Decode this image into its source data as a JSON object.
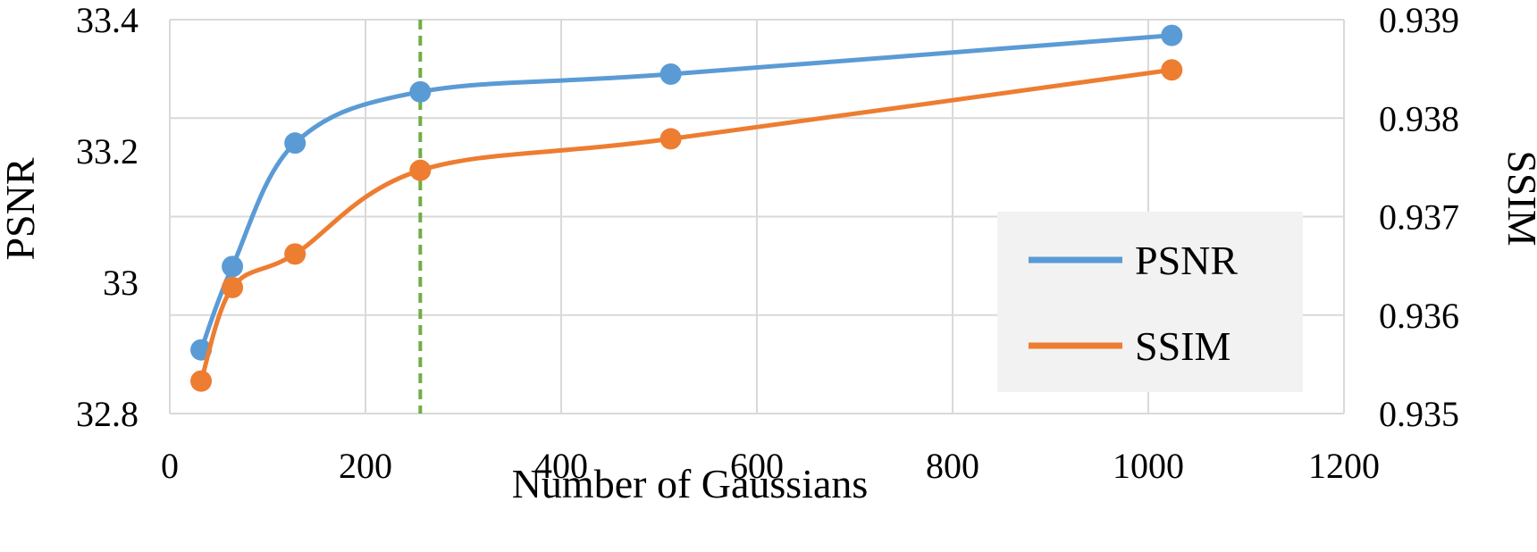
{
  "chart_data": {
    "type": "line",
    "xlabel": "Number of Gaussians",
    "ylabel_left": "PSNR",
    "ylabel_right": "SSIM",
    "xlim": [
      0,
      1200
    ],
    "ylim_left": [
      32.8,
      33.4
    ],
    "ylim_right": [
      0.935,
      0.939
    ],
    "x_ticks": [
      "0",
      "200",
      "400",
      "600",
      "800",
      "1000",
      "1200"
    ],
    "y_ticks_left": [
      "32.8",
      "33",
      "33.2",
      "33.4"
    ],
    "y_ticks_right": [
      "0.935",
      "0.936",
      "0.937",
      "0.938",
      "0.939"
    ],
    "grid": true,
    "legend_position": "bottom-right",
    "marker_line_x": 256,
    "series": [
      {
        "name": "PSNR",
        "axis": "left",
        "color": "#5b9bd5",
        "x": [
          32,
          64,
          128,
          256,
          512,
          1024
        ],
        "y": [
          32.897,
          33.024,
          33.212,
          33.29,
          33.317,
          33.376
        ]
      },
      {
        "name": "SSIM",
        "axis": "right",
        "color": "#ed7d31",
        "x": [
          32,
          64,
          128,
          256,
          512,
          1024
        ],
        "y": [
          0.93533,
          0.93628,
          0.93662,
          0.93747,
          0.93779,
          0.93849
        ]
      }
    ],
    "marker_line_color": "#70ad47",
    "grid_color": "#d9d9d9",
    "legend_bg": "#f2f2f2"
  }
}
